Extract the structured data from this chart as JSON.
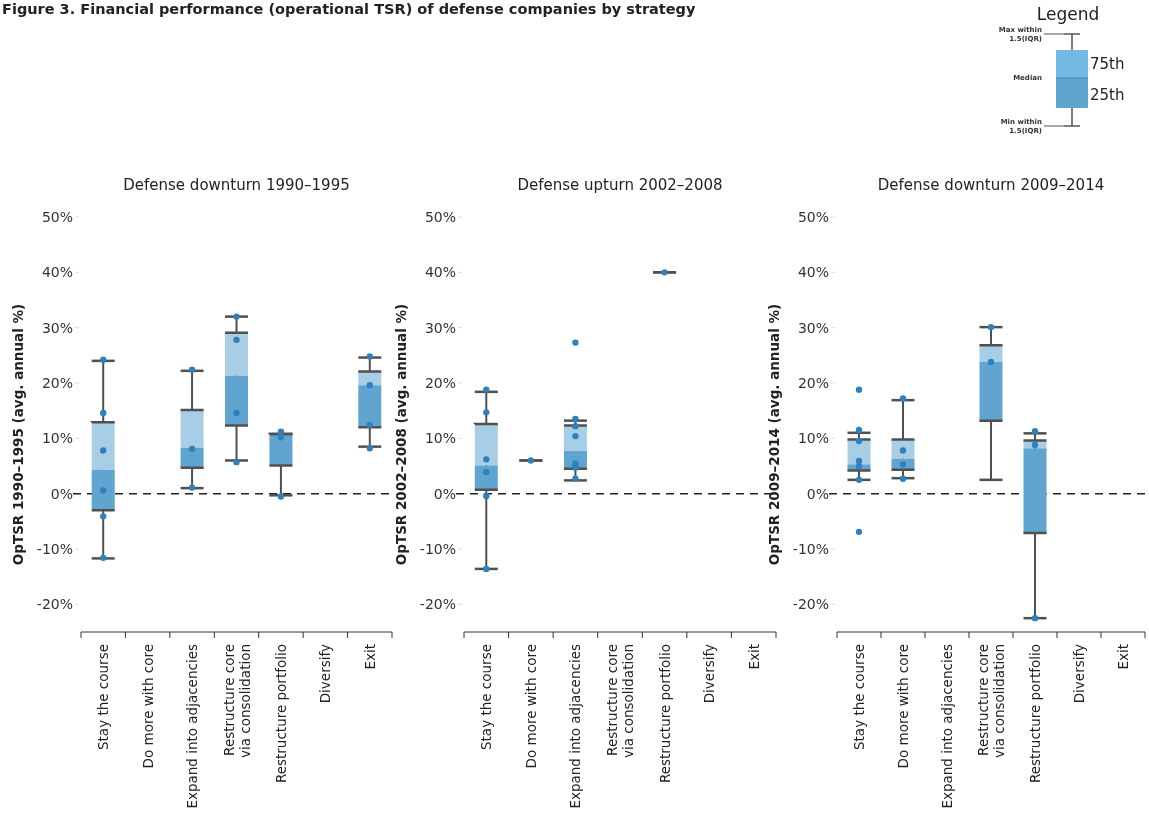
{
  "chart_data": [
    {
      "type": "other",
      "title": "Figure 3. Financial performance (operational TSR) of defense companies by strategy",
      "annotations": [
        "Legend",
        "Max within 1.5(IQR)",
        "75th",
        "Median",
        "25th",
        "Min within 1.5(IQR)"
      ]
    },
    {
      "type": "box",
      "title": "Defense downturn 1990–1995",
      "ylabel": "OpTSR 1990–1995 (avg. annual %)",
      "categories": [
        "Stay the course",
        "Do more with core",
        "Expand into adjacencies",
        "Restructure core via consolidation",
        "Restructure portfolio",
        "Diversify",
        "Exit"
      ],
      "ylim": [
        -25,
        50
      ],
      "yticks": [
        {
          "value": -20,
          "label": "-20%"
        },
        {
          "value": -10,
          "label": "-10%"
        },
        {
          "value": 0,
          "label": "0%"
        },
        {
          "value": 10,
          "label": "10%"
        },
        {
          "value": 20,
          "label": "20%"
        },
        {
          "value": 30,
          "label": "30%"
        },
        {
          "value": 40,
          "label": "40%"
        },
        {
          "value": 50,
          "label": "50%"
        }
      ],
      "ref_lines": [
        {
          "axis": "y",
          "value": 0,
          "color": "#222222",
          "line_style": "dashed"
        }
      ],
      "series": [
        {
          "type": "box",
          "colors": [
            "#5fa5d0",
            null,
            "#5fa5d0",
            "#5fa5d0",
            "#5fa5d0",
            null,
            "#5fa5d0"
          ],
          "boxes": [
            {
              "low": -11.7,
              "q1": -3,
              "median": 4.3,
              "q3": 12.9,
              "high": 24
            },
            null,
            {
              "low": 1,
              "q1": 4.7,
              "median": 8.3,
              "q3": 15.1,
              "high": 22.2
            },
            {
              "low": 6,
              "q1": 12.3,
              "median": 21.3,
              "q3": 29.1,
              "high": 32
            },
            {
              "low": -0.3,
              "q1": 5.1,
              "median": 10.8,
              "q3": 10.8,
              "high": 10.8
            },
            null,
            {
              "low": 8.5,
              "q1": 12,
              "median": 19.6,
              "q3": 22.1,
              "high": 24.6
            }
          ]
        },
        {
          "type": "scatter",
          "color": "#2f80bf",
          "x": [
            "Stay the course",
            "Stay the course",
            "Stay the course",
            "Stay the course",
            "Stay the course",
            "Stay the course",
            "Expand into adjacencies",
            "Expand into adjacencies",
            "Expand into adjacencies",
            "Restructure core via consolidation",
            "Restructure core via consolidation",
            "Restructure core via consolidation",
            "Restructure core via consolidation",
            "Restructure portfolio",
            "Restructure portfolio",
            "Restructure portfolio",
            "Exit",
            "Exit",
            "Exit",
            "Exit"
          ],
          "values": [
            24.2,
            14.6,
            7.8,
            0.6,
            -4.1,
            -11.6,
            22.4,
            8.1,
            1.1,
            32,
            27.8,
            14.6,
            5.7,
            11.2,
            10.2,
            -0.5,
            24.8,
            19.6,
            12.4,
            8.2
          ]
        }
      ]
    },
    {
      "type": "box",
      "title": "Defense upturn 2002–2008",
      "ylabel": "OpTSR 2002–2008 (avg. annual %)",
      "categories": [
        "Stay the course",
        "Do more with core",
        "Expand into adjacencies",
        "Restructure core via consolidation",
        "Restructure portfolio",
        "Diversify",
        "Exit"
      ],
      "ylim": [
        -25,
        50
      ],
      "yticks": [
        {
          "value": -20,
          "label": "-20%"
        },
        {
          "value": -10,
          "label": "-10%"
        },
        {
          "value": 0,
          "label": "0%"
        },
        {
          "value": 10,
          "label": "10%"
        },
        {
          "value": 20,
          "label": "20%"
        },
        {
          "value": 30,
          "label": "30%"
        },
        {
          "value": 40,
          "label": "40%"
        },
        {
          "value": 50,
          "label": "50%"
        }
      ],
      "ref_lines": [
        {
          "axis": "y",
          "value": 0,
          "color": "#222222",
          "line_style": "dashed"
        }
      ],
      "series": [
        {
          "type": "box",
          "colors": [
            "#5fa5d0",
            null,
            "#5fa5d0",
            null,
            null,
            null,
            null
          ],
          "boxes": [
            {
              "low": -13.6,
              "q1": 0.7,
              "median": 5.1,
              "q3": 12.6,
              "high": 18.4
            },
            {
              "low": 6,
              "q1": 6,
              "median": 6,
              "q3": 6,
              "high": 6
            },
            {
              "low": 2.4,
              "q1": 4.5,
              "median": 7.7,
              "q3": 12.3,
              "high": 13.2
            },
            null,
            {
              "low": 40,
              "q1": 40,
              "median": 40,
              "q3": 40,
              "high": 40
            },
            null,
            null
          ]
        },
        {
          "type": "scatter",
          "color": "#2f80bf",
          "x": [
            "Stay the course",
            "Stay the course",
            "Stay the course",
            "Stay the course",
            "Stay the course",
            "Stay the course",
            "Do more with core",
            "Expand into adjacencies",
            "Expand into adjacencies",
            "Expand into adjacencies",
            "Expand into adjacencies",
            "Expand into adjacencies",
            "Expand into adjacencies",
            "Expand into adjacencies",
            "Expand into adjacencies",
            "Restructure portfolio"
          ],
          "values": [
            18.8,
            14.7,
            6.2,
            3.9,
            -0.4,
            -13.6,
            6,
            27.3,
            13.5,
            12.2,
            10.4,
            5.4,
            5,
            4.7,
            2.7,
            40
          ]
        }
      ]
    },
    {
      "type": "box",
      "title": "Defense downturn 2009–2014",
      "ylabel": "OpTSR 2009–2014 (avg. annual %)",
      "categories": [
        "Stay the course",
        "Do more with core",
        "Expand into adjacencies",
        "Restructure core via consolidation",
        "Restructure portfolio",
        "Diversify",
        "Exit"
      ],
      "ylim": [
        -25,
        50
      ],
      "yticks": [
        {
          "value": -20,
          "label": "-20%"
        },
        {
          "value": -10,
          "label": "-10%"
        },
        {
          "value": 0,
          "label": "0%"
        },
        {
          "value": 10,
          "label": "10%"
        },
        {
          "value": 20,
          "label": "20%"
        },
        {
          "value": 30,
          "label": "30%"
        },
        {
          "value": 40,
          "label": "40%"
        },
        {
          "value": 50,
          "label": "50%"
        }
      ],
      "ref_lines": [
        {
          "axis": "y",
          "value": 0,
          "color": "#222222",
          "line_style": "dashed"
        }
      ],
      "series": [
        {
          "type": "box",
          "colors": [
            "#5fa5d0",
            "#5fa5d0",
            null,
            "#5fa5d0",
            "#5fa5d0",
            null,
            null
          ],
          "boxes": [
            {
              "low": 2.5,
              "q1": 4.2,
              "median": 5.3,
              "q3": 9.8,
              "high": 11
            },
            {
              "low": 2.8,
              "q1": 4.3,
              "median": 6.3,
              "q3": 9.8,
              "high": 16.9
            },
            null,
            {
              "low": 2.5,
              "q1": 13.2,
              "median": 23.8,
              "q3": 26.8,
              "high": 30.1
            },
            {
              "low": -22.5,
              "q1": -7.1,
              "median": 8.2,
              "q3": 9.6,
              "high": 10.9
            },
            null,
            null
          ]
        },
        {
          "type": "scatter",
          "color": "#2f80bf",
          "x": [
            "Stay the course",
            "Stay the course",
            "Stay the course",
            "Stay the course",
            "Stay the course",
            "Stay the course",
            "Stay the course",
            "Do more with core",
            "Do more with core",
            "Do more with core",
            "Do more with core",
            "Restructure core via consolidation",
            "Restructure core via consolidation",
            "Restructure portfolio",
            "Restructure portfolio",
            "Restructure portfolio"
          ],
          "values": [
            18.8,
            11.5,
            9.5,
            5.9,
            4.9,
            2.5,
            -6.9,
            17.2,
            7.8,
            5.3,
            2.7,
            30.1,
            23.8,
            11.3,
            8.8,
            -22.5
          ]
        }
      ]
    }
  ]
}
